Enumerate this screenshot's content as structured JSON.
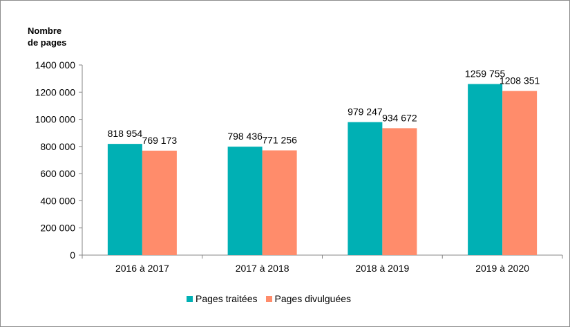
{
  "chart_data": {
    "type": "bar",
    "ylabel_lines": [
      "Nombre",
      "de pages"
    ],
    "categories": [
      "2016 à 2017",
      "2017 à 2018",
      "2018 à 2019",
      "2019 à 2020"
    ],
    "series": [
      {
        "name": "Pages traitées",
        "color": "#00b0b4",
        "values": [
          818954,
          798436,
          979247,
          1259755
        ],
        "labels": [
          "818 954",
          "798 436",
          "979 247",
          "1259 755"
        ]
      },
      {
        "name": "Pages divulguées",
        "color": "#ff8c6b",
        "values": [
          769173,
          771256,
          934672,
          1208351
        ],
        "labels": [
          "769 173",
          "771 256",
          "934 672",
          "1208 351"
        ]
      }
    ],
    "ylim": [
      0,
      1400000
    ],
    "yticks": [
      0,
      200000,
      400000,
      600000,
      800000,
      1000000,
      1200000,
      1400000
    ],
    "ytick_labels": [
      "0",
      "200 000",
      "400 000",
      "600 000",
      "800 000",
      "1000 000",
      "1200 000",
      "1400 000"
    ],
    "grid": false,
    "legend_position": "bottom"
  }
}
